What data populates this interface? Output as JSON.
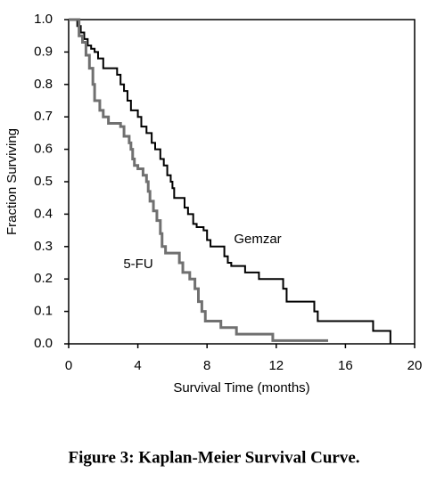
{
  "chart_data": {
    "type": "step",
    "x_label": "Survival Time (months)",
    "y_label": "Fraction Surviving",
    "caption": "Figure 3: Kaplan-Meier Survival Curve.",
    "xlim": [
      0,
      20
    ],
    "xticks": [
      0,
      4,
      8,
      12,
      16,
      20
    ],
    "ylim": [
      0,
      1
    ],
    "yticks": [
      {
        "value": 0,
        "label": "0.0"
      },
      0.1,
      0.2,
      0.3,
      0.4,
      0.5,
      0.6,
      0.7,
      0.8,
      0.9,
      {
        "value": 1,
        "label": "1.0"
      }
    ],
    "series": [
      {
        "name": "Gemzar",
        "color": "#000000",
        "x": [
          0,
          0.5,
          0.7,
          0.9,
          1.1,
          1.3,
          1.5,
          1.7,
          2.0,
          2.8,
          3.0,
          3.2,
          3.4,
          3.6,
          4.0,
          4.2,
          4.5,
          4.8,
          5.0,
          5.3,
          5.5,
          5.7,
          5.9,
          6.0,
          6.1,
          6.7,
          6.9,
          7.2,
          7.4,
          7.8,
          8.0,
          8.2,
          9.0,
          9.2,
          9.4,
          10.2,
          11.0,
          12.4,
          12.6,
          14.2,
          14.4,
          17.6,
          18.6
        ],
        "values": [
          1.0,
          0.98,
          0.96,
          0.94,
          0.92,
          0.91,
          0.9,
          0.88,
          0.85,
          0.83,
          0.8,
          0.78,
          0.75,
          0.72,
          0.7,
          0.67,
          0.65,
          0.62,
          0.6,
          0.57,
          0.55,
          0.52,
          0.5,
          0.48,
          0.45,
          0.42,
          0.4,
          0.37,
          0.36,
          0.35,
          0.32,
          0.3,
          0.27,
          0.25,
          0.24,
          0.22,
          0.2,
          0.17,
          0.13,
          0.1,
          0.07,
          0.04,
          0.0
        ]
      },
      {
        "name": "5-FU",
        "color": "#707070",
        "x": [
          0,
          0.6,
          0.8,
          1.0,
          1.2,
          1.4,
          1.5,
          1.8,
          2.0,
          2.3,
          3.0,
          3.2,
          3.5,
          3.6,
          3.7,
          3.8,
          4.0,
          4.3,
          4.5,
          4.6,
          4.7,
          4.9,
          5.1,
          5.3,
          5.4,
          5.6,
          6.4,
          6.6,
          7.0,
          7.3,
          7.5,
          7.7,
          7.9,
          8.8,
          9.7,
          11.8,
          15.0
        ],
        "values": [
          1.0,
          0.95,
          0.93,
          0.89,
          0.85,
          0.8,
          0.75,
          0.72,
          0.7,
          0.68,
          0.67,
          0.64,
          0.62,
          0.6,
          0.57,
          0.55,
          0.54,
          0.52,
          0.5,
          0.47,
          0.44,
          0.41,
          0.38,
          0.34,
          0.3,
          0.28,
          0.25,
          0.22,
          0.2,
          0.17,
          0.13,
          0.1,
          0.07,
          0.05,
          0.03,
          0.01,
          0.01
        ]
      }
    ]
  }
}
